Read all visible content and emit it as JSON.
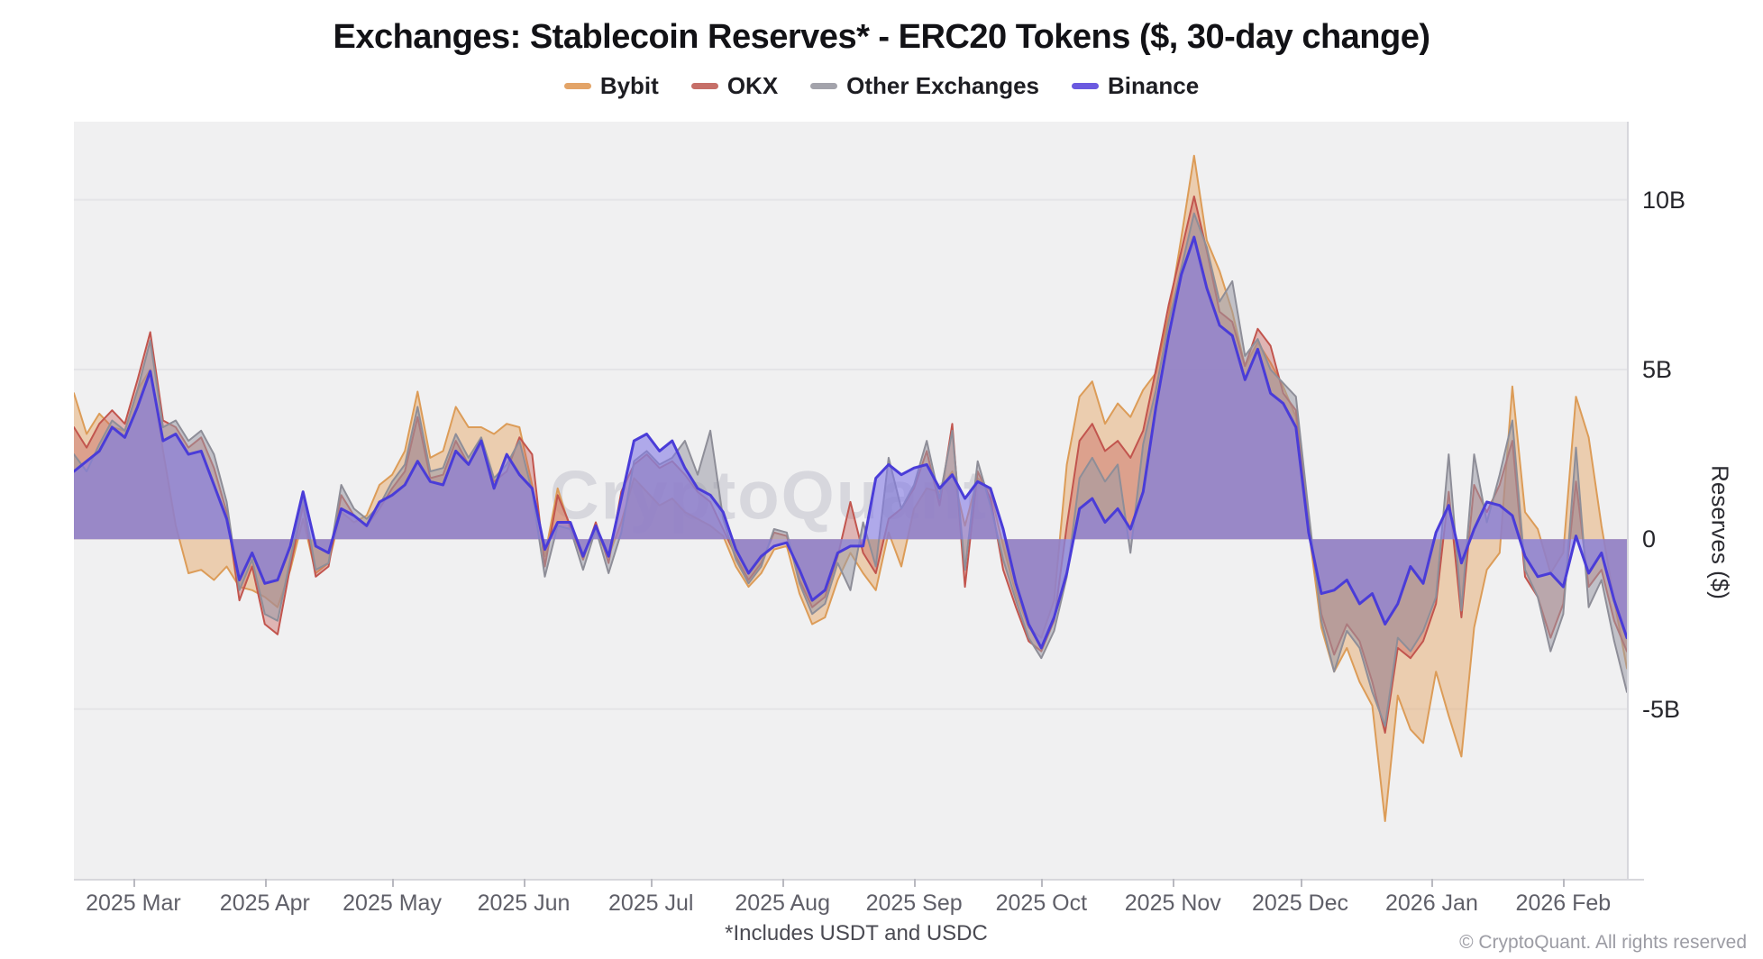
{
  "title": "Exchanges: Stablecoin Reserves* - ERC20 Tokens ($, 30-day change)",
  "watermark": "CryptoQuant",
  "footnote": "*Includes USDT and USDC",
  "copyright": "© CryptoQuant. All rights reserved",
  "y_axis": {
    "title": "Reserves ($)",
    "ticks": [
      {
        "label": "10B",
        "value": 10
      },
      {
        "label": "5B",
        "value": 5
      },
      {
        "label": "0",
        "value": 0
      },
      {
        "label": "-5B",
        "value": -5
      }
    ],
    "range": [
      -10.0,
      12.3
    ]
  },
  "x_axis": {
    "ticks": [
      {
        "label": "2025 Mar",
        "day": 14
      },
      {
        "label": "2025 Apr",
        "day": 45
      },
      {
        "label": "2025 May",
        "day": 75
      },
      {
        "label": "2025 Jun",
        "day": 106
      },
      {
        "label": "2025 Jul",
        "day": 136
      },
      {
        "label": "2025 Aug",
        "day": 167
      },
      {
        "label": "2025 Sep",
        "day": 198
      },
      {
        "label": "2025 Oct",
        "day": 228
      },
      {
        "label": "2025 Nov",
        "day": 259
      },
      {
        "label": "2025 Dec",
        "day": 289
      },
      {
        "label": "2026 Jan",
        "day": 320
      },
      {
        "label": "2026 Feb",
        "day": 351
      }
    ],
    "total_days": 366
  },
  "chart_data": {
    "type": "area",
    "title": "Exchanges: Stablecoin Reserves* - ERC20 Tokens ($, 30-day change)",
    "ylabel": "Reserves ($)",
    "ylim": [
      -10.0,
      12.3
    ],
    "x_unit": "days (spanning mid-Feb 2025 to mid-Feb 2026)",
    "sample_step_days": 3,
    "values_unit": "billions USD (30-day change)",
    "legend_position": "top-center",
    "grid": "horizontal",
    "series": [
      {
        "name": "Bybit",
        "legend_color": "#e3a468",
        "line_color": "#dc9c58",
        "fill_color": "rgba(230,170,110,0.50)",
        "line_width": 2,
        "values": [
          4.3,
          3.1,
          3.7,
          3.3,
          3.2,
          4.4,
          5.0,
          2.6,
          0.4,
          -1.0,
          -0.9,
          -1.2,
          -0.8,
          -1.4,
          -1.5,
          -1.7,
          -2.0,
          -0.9,
          0.6,
          -1.0,
          -0.7,
          0.8,
          0.5,
          0.7,
          1.6,
          1.9,
          2.6,
          4.35,
          2.4,
          2.6,
          3.9,
          3.3,
          3.3,
          3.1,
          3.4,
          3.3,
          1.6,
          -0.5,
          1.5,
          0.3,
          -0.4,
          0.2,
          -0.5,
          0.5,
          1.8,
          1.4,
          1.0,
          1.2,
          0.8,
          0.6,
          0.4,
          0.1,
          -0.8,
          -1.4,
          -1.0,
          -0.3,
          -0.2,
          -1.6,
          -2.5,
          -2.3,
          -1.2,
          -0.4,
          -1.0,
          -1.5,
          0.2,
          -0.8,
          0.9,
          1.5,
          1.4,
          2.0,
          0.4,
          1.8,
          1.4,
          -0.2,
          -1.6,
          -2.6,
          -2.9,
          -1.8,
          2.2,
          4.2,
          4.65,
          3.4,
          4.0,
          3.6,
          4.4,
          4.9,
          6.6,
          8.9,
          11.3,
          8.8,
          7.9,
          6.7,
          5.1,
          5.8,
          5.2,
          4.5,
          3.6,
          0.3,
          -2.6,
          -3.9,
          -3.2,
          -4.2,
          -4.9,
          -8.3,
          -4.6,
          -5.6,
          -6.0,
          -3.9,
          -5.2,
          -6.4,
          -2.6,
          -0.9,
          -0.4,
          4.5,
          0.8,
          0.3,
          -1.0,
          -0.4,
          4.2,
          3.0,
          0.4,
          -1.8,
          -3.8
        ]
      },
      {
        "name": "OKX",
        "legend_color": "#c66f68",
        "line_color": "#c2554e",
        "fill_color": "rgba(200,100,95,0.42)",
        "line_width": 2,
        "values": [
          3.3,
          2.7,
          3.4,
          3.8,
          3.4,
          4.7,
          6.1,
          3.5,
          3.3,
          2.7,
          3.0,
          2.1,
          0.8,
          -1.8,
          -0.8,
          -2.5,
          -2.8,
          -0.8,
          1.0,
          -1.1,
          -0.8,
          1.3,
          0.7,
          0.4,
          0.9,
          1.5,
          2.0,
          3.6,
          1.8,
          1.9,
          2.9,
          2.2,
          2.8,
          1.7,
          2.0,
          3.0,
          2.5,
          -0.8,
          1.3,
          0.4,
          -0.6,
          0.5,
          -0.7,
          1.4,
          2.2,
          2.5,
          2.1,
          2.3,
          1.9,
          1.4,
          1.1,
          0.3,
          -0.5,
          -1.2,
          -0.7,
          0.2,
          0.1,
          -1.2,
          -2.0,
          -1.7,
          -0.5,
          1.1,
          -0.4,
          -1.0,
          0.6,
          0.9,
          1.5,
          2.6,
          1.0,
          3.4,
          -1.4,
          2.0,
          1.2,
          -0.9,
          -2.0,
          -3.0,
          -3.3,
          -2.4,
          0.4,
          2.9,
          3.4,
          2.6,
          2.9,
          2.4,
          3.2,
          5.0,
          6.9,
          8.5,
          10.1,
          8.5,
          6.7,
          6.4,
          5.1,
          6.2,
          5.7,
          4.3,
          3.8,
          0.5,
          -2.2,
          -3.4,
          -2.5,
          -3.0,
          -4.2,
          -5.7,
          -3.2,
          -3.5,
          -3.0,
          -1.9,
          1.4,
          -2.3,
          1.6,
          0.8,
          1.6,
          2.9,
          -1.1,
          -1.7,
          -2.9,
          -1.9,
          1.7,
          -1.4,
          -0.9,
          -2.4,
          -3.3
        ]
      },
      {
        "name": "Other Exchanges",
        "legend_color": "#a3a3ab",
        "line_color": "#8e8e98",
        "fill_color": "rgba(155,155,165,0.55)",
        "line_width": 2,
        "values": [
          2.5,
          2.0,
          2.8,
          3.5,
          3.2,
          4.4,
          5.85,
          3.3,
          3.5,
          2.9,
          3.2,
          2.5,
          1.1,
          -1.5,
          -0.6,
          -2.2,
          -2.4,
          -0.6,
          1.2,
          -0.9,
          -0.7,
          1.6,
          0.9,
          0.6,
          1.0,
          1.7,
          2.2,
          3.9,
          2.0,
          2.1,
          3.1,
          2.4,
          3.0,
          1.8,
          2.2,
          2.9,
          1.4,
          -1.1,
          0.4,
          0.3,
          -0.9,
          0.3,
          -1.0,
          0.2,
          2.3,
          2.6,
          2.2,
          2.4,
          2.9,
          1.9,
          3.2,
          0.6,
          -0.6,
          -1.3,
          -0.8,
          0.3,
          0.2,
          -1.3,
          -2.2,
          -1.9,
          -0.7,
          -1.5,
          0.5,
          -0.8,
          2.4,
          0.9,
          1.6,
          2.9,
          1.2,
          3.2,
          -0.9,
          2.3,
          1.0,
          -0.6,
          -1.8,
          -2.9,
          -3.5,
          -2.7,
          -1.1,
          1.8,
          2.4,
          1.7,
          2.2,
          -0.4,
          2.8,
          4.4,
          6.4,
          8.0,
          9.6,
          8.6,
          7.0,
          7.6,
          5.4,
          5.9,
          5.0,
          4.6,
          4.2,
          0.8,
          -2.4,
          -3.9,
          -2.7,
          -3.2,
          -4.5,
          -5.5,
          -2.9,
          -3.3,
          -2.7,
          -1.7,
          2.5,
          -2.1,
          2.5,
          0.5,
          1.9,
          3.5,
          -0.9,
          -1.7,
          -3.3,
          -2.2,
          2.7,
          -2.0,
          -1.2,
          -3.0,
          -4.5
        ]
      },
      {
        "name": "Binance",
        "legend_color": "#6b5ae0",
        "line_color": "#4a3cd8",
        "fill_color": "rgba(132,122,230,0.60)",
        "line_width": 3,
        "values": [
          2.0,
          2.3,
          2.6,
          3.3,
          3.0,
          3.9,
          4.95,
          2.9,
          3.1,
          2.5,
          2.6,
          1.6,
          0.6,
          -1.2,
          -0.4,
          -1.3,
          -1.2,
          -0.2,
          1.4,
          -0.2,
          -0.4,
          0.9,
          0.7,
          0.4,
          1.1,
          1.3,
          1.6,
          2.3,
          1.7,
          1.6,
          2.6,
          2.2,
          2.9,
          1.5,
          2.5,
          1.9,
          1.5,
          -0.3,
          0.5,
          0.5,
          -0.5,
          0.4,
          -0.5,
          1.2,
          2.9,
          3.1,
          2.6,
          2.9,
          2.1,
          1.5,
          1.3,
          0.8,
          -0.3,
          -1.0,
          -0.5,
          -0.2,
          -0.1,
          -0.9,
          -1.8,
          -1.5,
          -0.4,
          -0.2,
          -0.2,
          1.8,
          2.2,
          1.9,
          2.1,
          2.2,
          1.5,
          1.9,
          1.2,
          1.7,
          1.5,
          0.3,
          -1.3,
          -2.5,
          -3.2,
          -2.3,
          -1.0,
          0.9,
          1.2,
          0.5,
          0.9,
          0.3,
          1.4,
          3.9,
          6.0,
          7.8,
          8.9,
          7.4,
          6.3,
          6.0,
          4.7,
          5.6,
          4.3,
          4.0,
          3.3,
          0.2,
          -1.6,
          -1.5,
          -1.2,
          -1.9,
          -1.6,
          -2.5,
          -1.9,
          -0.8,
          -1.3,
          0.2,
          1.0,
          -0.7,
          0.3,
          1.1,
          1.0,
          0.7,
          -0.5,
          -1.1,
          -1.0,
          -1.4,
          0.1,
          -1.0,
          -0.4,
          -1.8,
          -2.9
        ]
      }
    ]
  }
}
